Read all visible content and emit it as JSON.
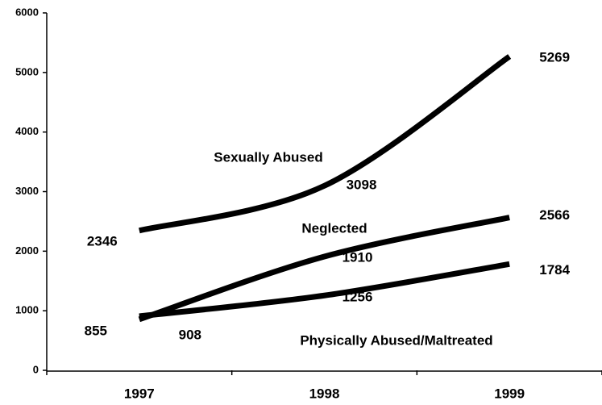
{
  "chart_data": {
    "type": "line",
    "categories": [
      "1997",
      "1998",
      "1999"
    ],
    "series": [
      {
        "name": "Sexually Abused",
        "color": "#000000",
        "values": [
          2346,
          3098,
          5269
        ]
      },
      {
        "name": "Neglected",
        "color": "#000000",
        "values": [
          855,
          1910,
          2566
        ]
      },
      {
        "name": "Physically Abused/Maltreated",
        "color": "#000000",
        "values": [
          908,
          1256,
          1784
        ]
      }
    ],
    "ylim": [
      0,
      6000
    ],
    "yticks": [
      0,
      1000,
      2000,
      3000,
      4000,
      5000,
      6000
    ],
    "grid": false
  }
}
